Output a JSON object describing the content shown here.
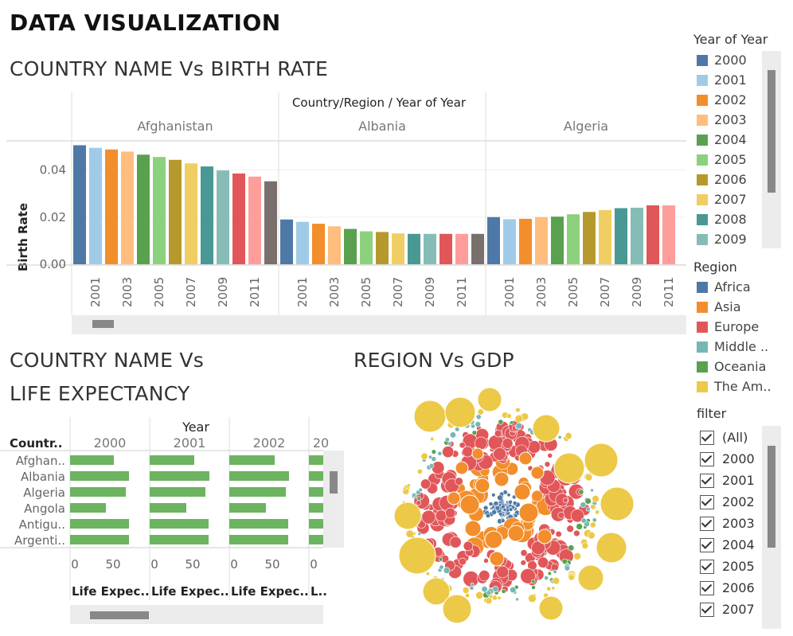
{
  "page": {
    "title": "DATA VISUALIZATION"
  },
  "birth_rate_section": {
    "title": "COUNTRY NAME Vs BIRTH RATE",
    "header": "Country/Region  /  Year of Year",
    "y_axis_label": "Birth Rate"
  },
  "life_section": {
    "title_line1": "COUNTRY NAME Vs",
    "title_line2": "LIFE EXPECTANCY",
    "year_header": "Year",
    "row_header": "Countr..",
    "panel_labels": [
      "2000",
      "2001",
      "2002",
      "20"
    ],
    "axis_labels": [
      "Life Expec..",
      "Life Expec..",
      "Life Expec..",
      "L.."
    ]
  },
  "gdp_section": {
    "title": "REGION Vs GDP"
  },
  "legend_year": {
    "title": "Year of Year",
    "items": [
      {
        "label": "2000",
        "color": "#4e79a7"
      },
      {
        "label": "2001",
        "color": "#a0cbe8"
      },
      {
        "label": "2002",
        "color": "#f28e2b"
      },
      {
        "label": "2003",
        "color": "#ffbe7d"
      },
      {
        "label": "2004",
        "color": "#59a14f"
      },
      {
        "label": "2005",
        "color": "#8cd17d"
      },
      {
        "label": "2006",
        "color": "#b6992d"
      },
      {
        "label": "2007",
        "color": "#f1ce63"
      },
      {
        "label": "2008",
        "color": "#499894"
      },
      {
        "label": "2009",
        "color": "#86bcb6"
      }
    ]
  },
  "legend_region": {
    "title": "Region",
    "items": [
      {
        "label": "Africa",
        "color": "#4e79a7"
      },
      {
        "label": "Asia",
        "color": "#f28e2b"
      },
      {
        "label": "Europe",
        "color": "#e15759"
      },
      {
        "label": "Middle ..",
        "color": "#76b7b2"
      },
      {
        "label": "Oceania",
        "color": "#59a14f"
      },
      {
        "label": "The Am..",
        "color": "#edc948"
      }
    ]
  },
  "filter": {
    "title": "filter",
    "items": [
      "(All)",
      "2000",
      "2001",
      "2002",
      "2003",
      "2004",
      "2005",
      "2006",
      "2007"
    ]
  },
  "chart_data": [
    {
      "type": "bar",
      "title": "COUNTRY NAME Vs BIRTH RATE",
      "xlabel": "Country/Region / Year of Year",
      "ylabel": "Birth Rate",
      "ylim": [
        0,
        0.052
      ],
      "y_ticks": [
        "0.00",
        "0.02",
        "0.04"
      ],
      "y_tick_values": [
        0,
        0.02,
        0.04
      ],
      "x_tick_labels": [
        "2001",
        "2003",
        "2005",
        "2007",
        "2009",
        "2011"
      ],
      "years": [
        "2000",
        "2001",
        "2002",
        "2003",
        "2004",
        "2005",
        "2006",
        "2007",
        "2008",
        "2009",
        "2010",
        "2011",
        "2012"
      ],
      "year_colors": [
        "#4e79a7",
        "#a0cbe8",
        "#f28e2b",
        "#ffbe7d",
        "#59a14f",
        "#8cd17d",
        "#b6992d",
        "#f1ce63",
        "#499894",
        "#86bcb6",
        "#e15759",
        "#ff9d9a",
        "#79706e"
      ],
      "countries": [
        {
          "name": "Afghanistan",
          "values": [
            0.0505,
            0.0494,
            0.0487,
            0.0478,
            0.0465,
            0.0455,
            0.0443,
            0.0428,
            0.0415,
            0.0398,
            0.0385,
            0.0372,
            0.0352
          ]
        },
        {
          "name": "Albania",
          "values": [
            0.019,
            0.018,
            0.0172,
            0.0161,
            0.015,
            0.014,
            0.0137,
            0.0131,
            0.0129,
            0.0129,
            0.0129,
            0.0129,
            0.0129
          ]
        },
        {
          "name": "Algeria",
          "values": [
            0.02,
            0.0191,
            0.0193,
            0.02,
            0.0202,
            0.0212,
            0.0222,
            0.023,
            0.0238,
            0.024,
            0.025,
            0.025,
            0.025
          ]
        }
      ]
    },
    {
      "type": "bar",
      "orientation": "horizontal",
      "title": "COUNTRY NAME Vs LIFE EXPECTANCY",
      "xlabel": "Life Expec..",
      "xlim": [
        0,
        100
      ],
      "x_ticks": [
        "0",
        "50"
      ],
      "color": "#6cb45f",
      "categories": [
        "Afghan..",
        "Albania",
        "Algeria",
        "Angola",
        "Antigu..",
        "Argenti.."
      ],
      "series": [
        {
          "name": "2000",
          "values": [
            55,
            74,
            70,
            45,
            74,
            74
          ]
        },
        {
          "name": "2001",
          "values": [
            56,
            75,
            70,
            46,
            74,
            74
          ]
        },
        {
          "name": "2002",
          "values": [
            57,
            75,
            71,
            46,
            74,
            74
          ]
        },
        {
          "name": "20",
          "values": [
            57,
            76,
            71,
            47,
            75,
            75
          ]
        }
      ]
    },
    {
      "type": "scatter",
      "style": "packed-bubble",
      "title": "REGION Vs GDP",
      "note": "Bubbles sized by GDP, colored by region; Africa at center, Asia next, Europe outer ring, The Americas on the outside.",
      "regions": [
        {
          "name": "Africa",
          "color": "#4e79a7"
        },
        {
          "name": "Asia",
          "color": "#f28e2b"
        },
        {
          "name": "Europe",
          "color": "#e15759"
        },
        {
          "name": "Middle ..",
          "color": "#76b7b2"
        },
        {
          "name": "Oceania",
          "color": "#59a14f"
        },
        {
          "name": "The Am..",
          "color": "#edc948"
        }
      ]
    }
  ]
}
